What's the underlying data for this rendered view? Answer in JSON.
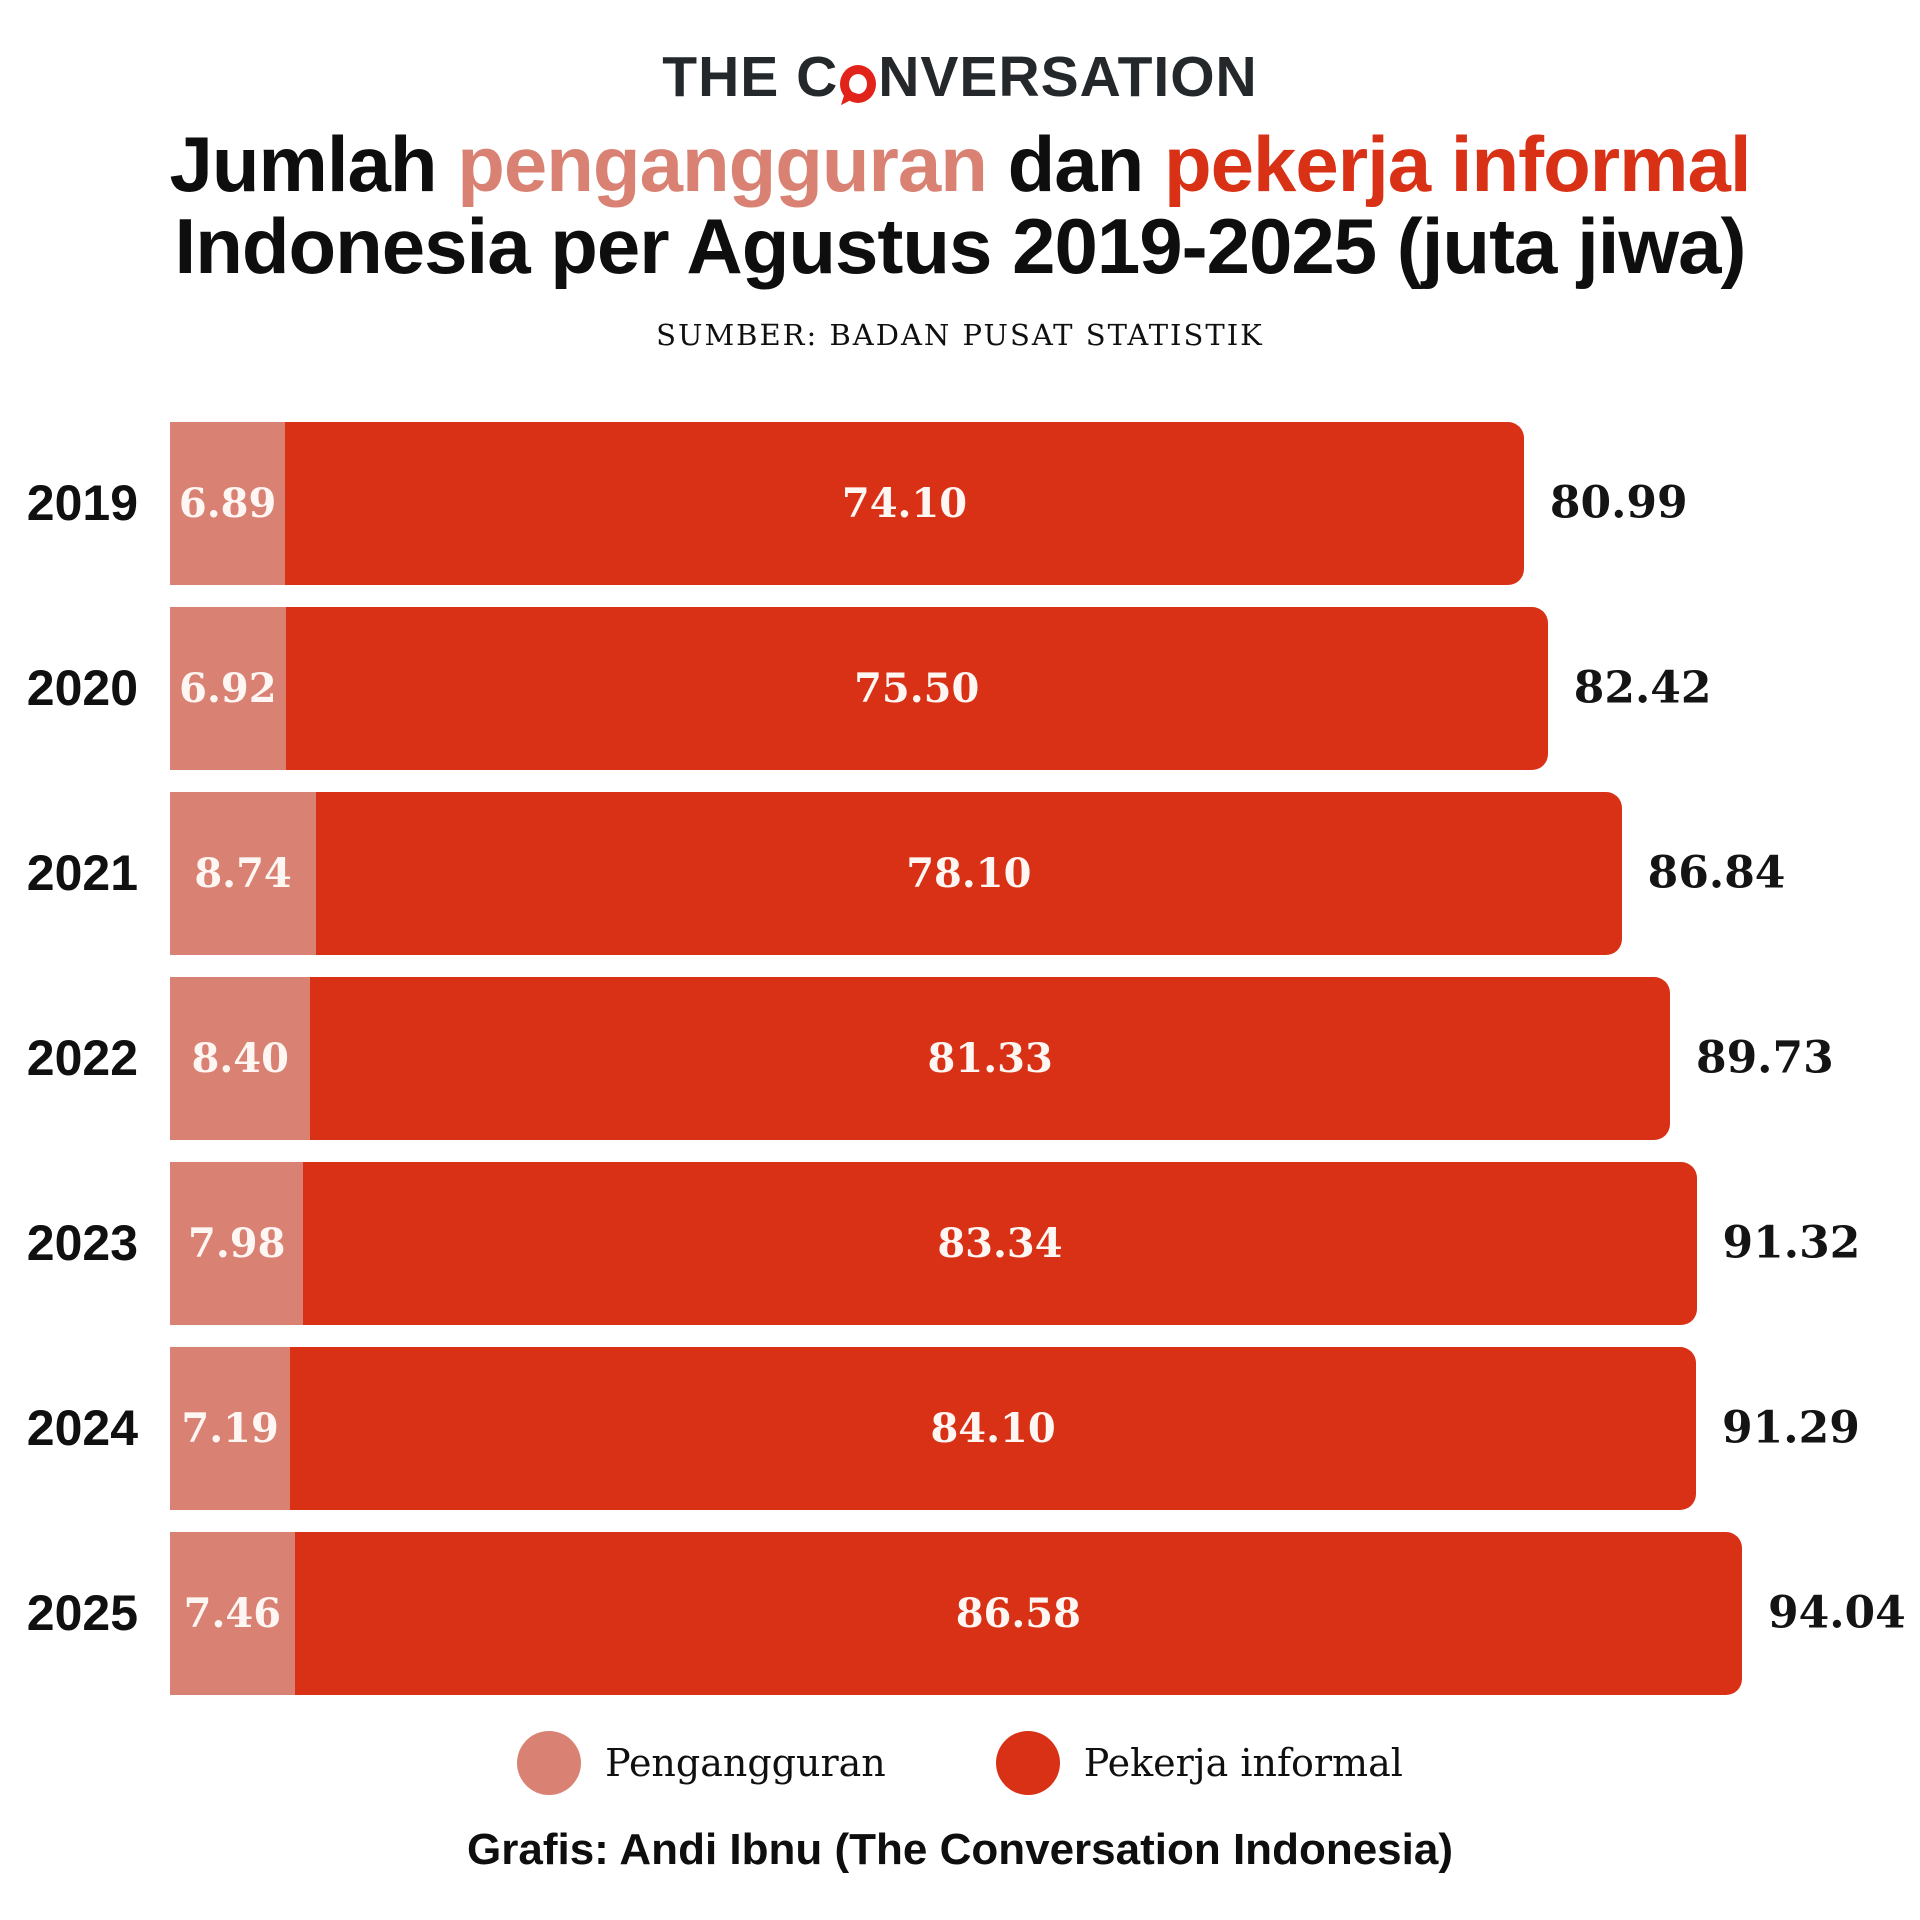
{
  "logo": {
    "left": "THE C",
    "right": "NVERSATION"
  },
  "title": {
    "part1": "Jumlah ",
    "part2": "pengangguran",
    "part3": " dan ",
    "part4": "pekerja informal",
    "line2": "Indonesia per Agustus 2019-2025 (juta jiwa)"
  },
  "colors": {
    "salmon": "#D98273",
    "red": "#D93115",
    "logo_red": "#E2231A"
  },
  "chart_data": {
    "type": "bar",
    "orientation": "horizontal",
    "stacked": true,
    "title": "Jumlah pengangguran dan pekerja informal Indonesia per Agustus 2019-2025 (juta jiwa)",
    "source": "SUMBER: BADAN PUSAT STATISTIK",
    "unit": "juta jiwa",
    "categories": [
      "2019",
      "2020",
      "2021",
      "2022",
      "2023",
      "2024",
      "2025"
    ],
    "series": [
      {
        "name": "Pengangguran",
        "color": "#D98273",
        "values": [
          6.89,
          6.92,
          8.74,
          8.4,
          7.98,
          7.19,
          7.46
        ]
      },
      {
        "name": "Pekerja informal",
        "color": "#D93115",
        "values": [
          74.1,
          75.5,
          78.1,
          81.33,
          83.34,
          84.1,
          86.58
        ]
      }
    ],
    "totals": [
      80.99,
      82.42,
      86.84,
      89.73,
      91.32,
      91.29,
      94.04
    ],
    "xmax": 94.04,
    "grid": false,
    "legend_position": "bottom",
    "value_labels": "inside-segments-and-total-right"
  },
  "footer": {
    "credit": "Grafis: Andi Ibnu (The Conversation Indonesia)"
  }
}
